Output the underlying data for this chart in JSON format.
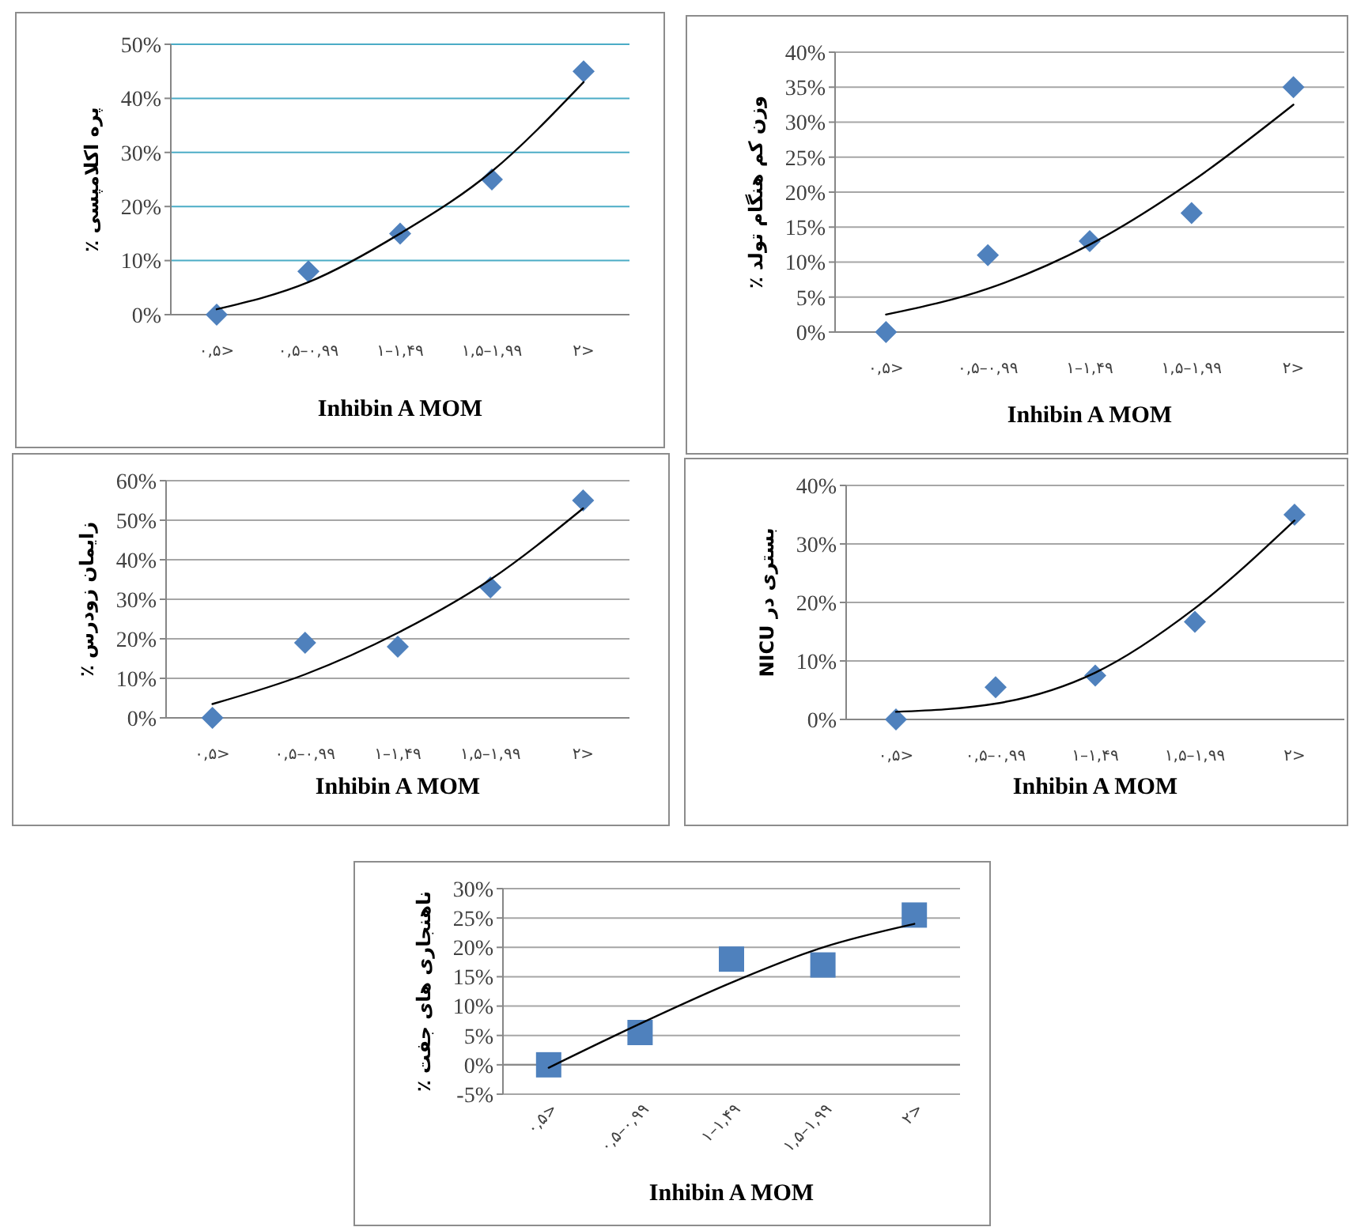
{
  "chart_data": [
    {
      "type": "scatter",
      "xlabel": "Inhibin A MOM",
      "ylabel": "پره اکلامپسی ٪",
      "categories": [
        "۰,۵>",
        "۰,۵–۰,۹۹",
        "۱–۱,۴۹",
        "۱,۵–۱,۹۹",
        "۲>"
      ],
      "grid": "y",
      "ylim": [
        0,
        50
      ],
      "yticks": [
        {
          "value": 0,
          "label": "0%"
        },
        {
          "value": 10,
          "label": "10%"
        },
        {
          "value": 20,
          "label": "20%"
        },
        {
          "value": 30,
          "label": "30%"
        },
        {
          "value": 40,
          "label": "40%"
        },
        {
          "value": 50,
          "label": "50%"
        }
      ],
      "series": [
        {
          "color": "#4f81bd",
          "marker": "diamond",
          "values": [
            0,
            8,
            15,
            25,
            45
          ]
        },
        {
          "type": "line",
          "marker": "none",
          "color": "#000000",
          "values": [
            1,
            6,
            15,
            26.5,
            43
          ]
        }
      ]
    },
    {
      "type": "scatter",
      "xlabel": "Inhibin A MOM",
      "ylabel": "وزن کم هنگام تولد ٪",
      "categories": [
        "۰,۵>",
        "۰,۵–۰,۹۹",
        "۱–۱,۴۹",
        "۱,۵–۱,۹۹",
        "۲>"
      ],
      "grid": "y",
      "ylim": [
        0,
        40
      ],
      "yticks": [
        {
          "value": 0,
          "label": "0%"
        },
        {
          "value": 5,
          "label": "5%"
        },
        {
          "value": 10,
          "label": "10%"
        },
        {
          "value": 15,
          "label": "15%"
        },
        {
          "value": 20,
          "label": "20%"
        },
        {
          "value": 25,
          "label": "25%"
        },
        {
          "value": 30,
          "label": "30%"
        },
        {
          "value": 35,
          "label": "35%"
        },
        {
          "value": 40,
          "label": "40%"
        }
      ],
      "series": [
        {
          "color": "#4f81bd",
          "marker": "diamond",
          "values": [
            0,
            11,
            13,
            17,
            35
          ]
        },
        {
          "type": "line",
          "marker": "none",
          "color": "#000000",
          "values": [
            2.5,
            6.2,
            12.5,
            21.5,
            32.5
          ]
        }
      ]
    },
    {
      "type": "scatter",
      "xlabel": "Inhibin A MOM",
      "ylabel": "زایمان زودرس ٪",
      "categories": [
        "۰,۵>",
        "۰,۵–۰,۹۹",
        "۱–۱,۴۹",
        "۱,۵–۱,۹۹",
        "۲>"
      ],
      "grid": "y",
      "ylim": [
        0,
        60
      ],
      "yticks": [
        {
          "value": 0,
          "label": "0%"
        },
        {
          "value": 10,
          "label": "10%"
        },
        {
          "value": 20,
          "label": "20%"
        },
        {
          "value": 30,
          "label": "30%"
        },
        {
          "value": 40,
          "label": "40%"
        },
        {
          "value": 50,
          "label": "50%"
        },
        {
          "value": 60,
          "label": "60%"
        }
      ],
      "series": [
        {
          "color": "#4f81bd",
          "marker": "diamond",
          "values": [
            0,
            19,
            18,
            33,
            55
          ]
        },
        {
          "type": "line",
          "marker": "none",
          "color": "#000000",
          "values": [
            3.5,
            11,
            21.5,
            35,
            53
          ]
        }
      ]
    },
    {
      "type": "scatter",
      "xlabel": "Inhibin A MOM",
      "ylabel": "بستری در NICU",
      "categories": [
        "۰,۵>",
        "۰,۵–۰,۹۹",
        "۱–۱,۴۹",
        "۱,۵–۱,۹۹",
        "۲>"
      ],
      "grid": "y",
      "ylim": [
        0,
        40
      ],
      "yticks": [
        {
          "value": 0,
          "label": "0%"
        },
        {
          "value": 10,
          "label": "10%"
        },
        {
          "value": 20,
          "label": "20%"
        },
        {
          "value": 30,
          "label": "30%"
        },
        {
          "value": 40,
          "label": "40%"
        }
      ],
      "series": [
        {
          "color": "#4f81bd",
          "marker": "diamond",
          "values": [
            0,
            5.5,
            7.5,
            16.7,
            35
          ]
        },
        {
          "type": "line",
          "marker": "none",
          "color": "#000000",
          "values": [
            1.3,
            2.7,
            8,
            19,
            34
          ]
        }
      ]
    },
    {
      "type": "scatter",
      "xlabel": "Inhibin A MOM",
      "ylabel": "ناهنجاری های جفت ٪",
      "categories": [
        "۰,۵>",
        "۰,۵–۰,۹۹",
        "۱–۱,۴۹",
        "۱,۵–۱,۹۹",
        "۲>"
      ],
      "grid": "y",
      "ylim": [
        -5,
        30
      ],
      "yticks": [
        {
          "value": -5,
          "label": "-5%"
        },
        {
          "value": 0,
          "label": "0%"
        },
        {
          "value": 5,
          "label": "5%"
        },
        {
          "value": 10,
          "label": "10%"
        },
        {
          "value": 15,
          "label": "15%"
        },
        {
          "value": 20,
          "label": "20%"
        },
        {
          "value": 25,
          "label": "25%"
        },
        {
          "value": 30,
          "label": "30%"
        }
      ],
      "series": [
        {
          "color": "#4f81bd",
          "marker": "square",
          "values": [
            0,
            5.5,
            18,
            17,
            25.5
          ]
        },
        {
          "type": "line",
          "marker": "none",
          "color": "#000000",
          "values": [
            -0.5,
            7,
            14,
            20,
            24
          ]
        }
      ]
    }
  ]
}
